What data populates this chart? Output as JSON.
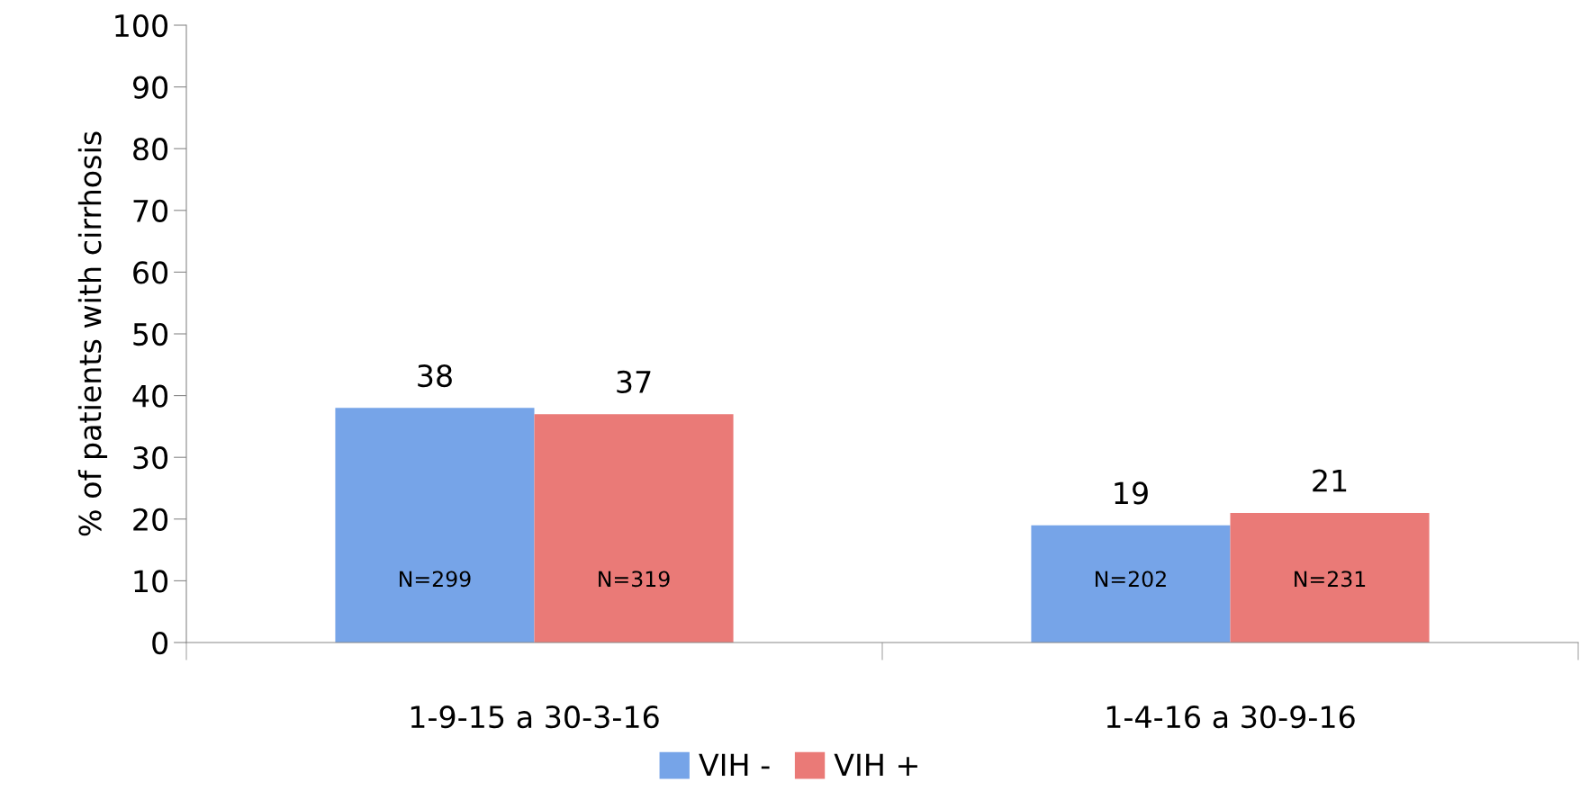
{
  "chart_data": {
    "type": "bar",
    "ylabel": "% of patients with cirrhosis",
    "categories": [
      "1-9-15 a 30-3-16",
      "1-4-16 a 30-9-16"
    ],
    "series": [
      {
        "name": "VIH -",
        "color": "#76a4e8",
        "values": [
          38,
          19
        ]
      },
      {
        "name": "VIH +",
        "color": "#ea7a77",
        "values": [
          37,
          21
        ]
      }
    ],
    "ylim": [
      0,
      100
    ],
    "yticks": [
      0,
      10,
      20,
      30,
      40,
      50,
      60,
      70,
      80,
      90,
      100
    ],
    "data_labels": true,
    "grid": false,
    "legend": "bottom",
    "annotations": [
      "N=299",
      "N=319",
      "N=202",
      "N=231"
    ]
  }
}
